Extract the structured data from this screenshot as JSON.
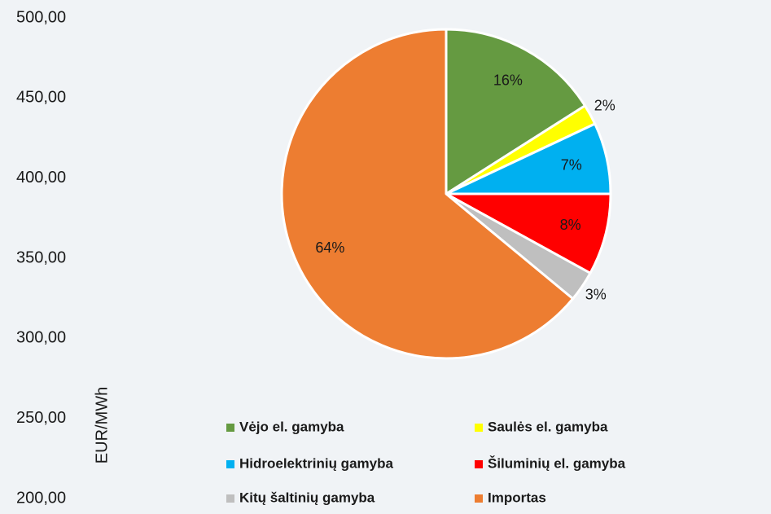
{
  "chart_data": {
    "type": "pie",
    "categories": [
      "Vėjo el. gamyba",
      "Saulės el. gamyba",
      "Hidroelektrinių gamyba",
      "Šiluminių el. gamyba",
      "Kitų  šaltinių gamyba",
      "Importas"
    ],
    "values": [
      16,
      2,
      7,
      8,
      3,
      64
    ],
    "value_labels": [
      "16%",
      "2%",
      "7%",
      "8%",
      "3%",
      "64%"
    ],
    "colors": [
      "#659a41",
      "#ffff00",
      "#00b0f0",
      "#ff0000",
      "#bfbfbf",
      "#ed7d31"
    ],
    "ylabel": "EUR/MWh",
    "ylim": [
      200,
      500
    ],
    "yticks": [
      {
        "value": 500,
        "label": "500,00"
      },
      {
        "value": 450,
        "label": "450,00"
      },
      {
        "value": 400,
        "label": "400,00"
      },
      {
        "value": 350,
        "label": "350,00"
      },
      {
        "value": 300,
        "label": "300,00"
      },
      {
        "value": 250,
        "label": "250,00"
      },
      {
        "value": 200,
        "label": "200,00"
      }
    ]
  }
}
